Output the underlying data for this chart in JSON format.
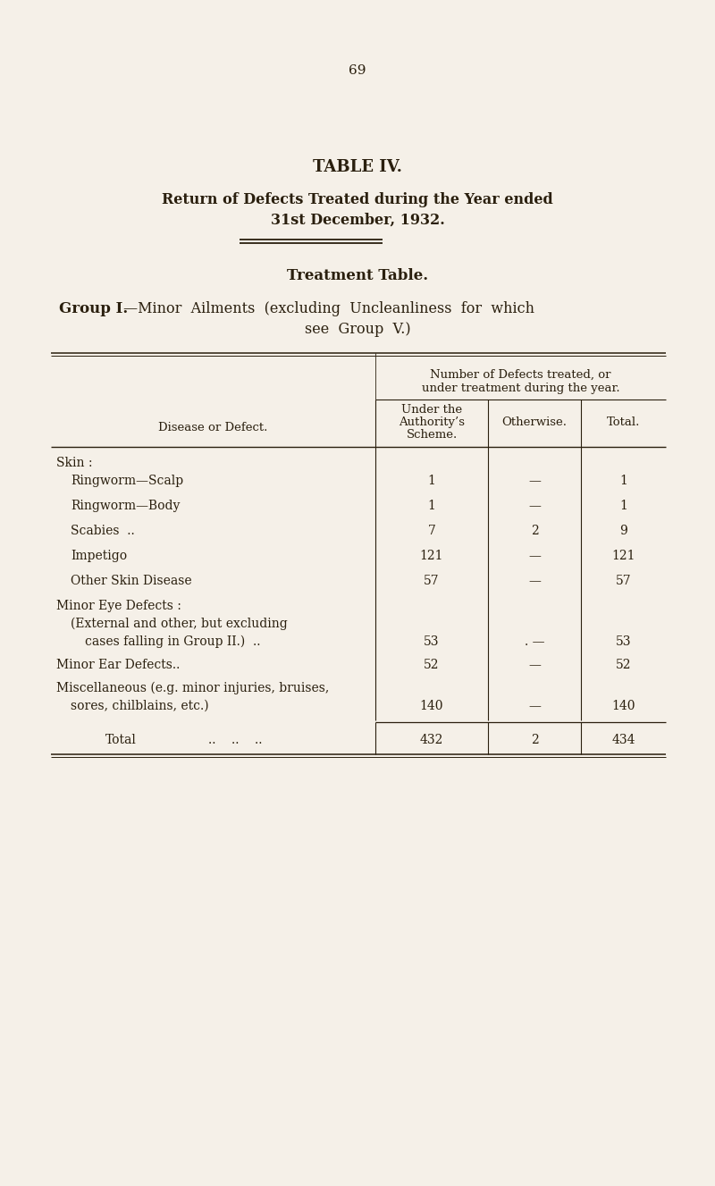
{
  "page_number": "69",
  "title": "TABLE IV.",
  "subtitle_line1": "Return of Defects Treated during the Year ended",
  "subtitle_line2": "31st December, 1932.",
  "section_title": "Treatment Table.",
  "group_label": "Group I.",
  "group_text": "—Minor  Ailments  (excluding  Uncleanliness  for  which",
  "group_text2": "see  Group  V.)",
  "col_span_line1": "Number of Defects treated, or",
  "col_span_line2": "under treatment during the year.",
  "col1_hdr1": "Under the",
  "col1_hdr2": "Authority’s",
  "col1_hdr3": "Scheme.",
  "col2_hdr": "Otherwise.",
  "col3_hdr": "Total.",
  "disease_hdr": "Disease or Defect.",
  "rows": [
    {
      "label": "Skin :",
      "indent": 0,
      "col1": "",
      "col2": "",
      "col3": ""
    },
    {
      "label": "Ringworm—Scalp",
      "dots": ".. .. ..",
      "indent": 1,
      "col1": "1",
      "col2": "—",
      "col3": "1"
    },
    {
      "label": "Ringworm—Body",
      "dots": ".. .. ..",
      "indent": 1,
      "col1": "1",
      "col2": "—",
      "col3": "1"
    },
    {
      "label": "Scabies  ..",
      "dots": ".. .. .. ..",
      "indent": 1,
      "col1": "7",
      "col2": "2",
      "col3": "9"
    },
    {
      "label": "Impetigo",
      "dots": ".. .. .. ..",
      "indent": 1,
      "col1": "121",
      "col2": "—",
      "col3": "121"
    },
    {
      "label": "Other Skin Disease",
      "dots": ".. .. ..",
      "indent": 1,
      "col1": "57",
      "col2": "—",
      "col3": "57"
    },
    {
      "label": "Minor Eye Defects :",
      "indent": 0,
      "col1": "",
      "col2": "",
      "col3": ""
    },
    {
      "label": "(External and other, but excluding",
      "indent": 1,
      "col1": "",
      "col2": "",
      "col3": ""
    },
    {
      "label": "cases falling in Group II.)  ..",
      "dots": "..",
      "indent": 2,
      "col1": "53",
      "col2": ". —",
      "col3": "53"
    },
    {
      "label": "Minor Ear Defects..",
      "dots": ".. .. ..",
      "indent": 0,
      "col1": "52",
      "col2": "—",
      "col3": "52"
    },
    {
      "label": "Miscellaneous (e.g. minor injuries, bruises,",
      "indent": 0,
      "col1": "",
      "col2": "",
      "col3": ""
    },
    {
      "label": "sores, chilblains, etc.)",
      "dots": ".. ..",
      "indent": 1,
      "col1": "140",
      "col2": "—",
      "col3": "140"
    }
  ],
  "total_label": "Total",
  "total_dots": "..    ..    ..",
  "total_col1": "432",
  "total_col2": "2",
  "total_col3": "434",
  "bg_color": "#f5f0e8",
  "text_color": "#2a1f0e",
  "line_color": "#2a1f0e"
}
